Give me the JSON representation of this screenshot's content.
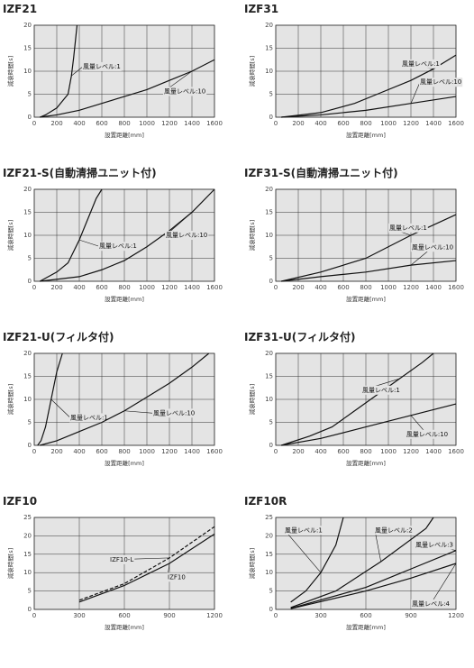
{
  "chart_data": [
    {
      "type": "line",
      "title": "IZF21",
      "x_label": "設置距離[mm]",
      "y_label": "減衰時間[s]",
      "xlim": [
        0,
        1600
      ],
      "xticks": [
        0,
        200,
        400,
        600,
        800,
        1000,
        1200,
        1400,
        1600
      ],
      "ylim": [
        0,
        20
      ],
      "yticks": [
        0,
        5,
        10,
        15,
        20
      ],
      "grid": true,
      "series": [
        {
          "name": "風量レベル:1",
          "color": "#111111",
          "linestyle": "solid",
          "x": [
            50,
            100,
            200,
            250,
            300,
            330,
            350,
            380
          ],
          "values": [
            0,
            0.5,
            2,
            3.5,
            5,
            9,
            13,
            20
          ]
        },
        {
          "name": "風量レベル:10",
          "color": "#111111",
          "linestyle": "solid",
          "x": [
            50,
            200,
            400,
            600,
            800,
            1000,
            1200,
            1400,
            1600
          ],
          "values": [
            0,
            0.5,
            1.5,
            3,
            4.5,
            6,
            8,
            10,
            12.5
          ]
        }
      ]
    },
    {
      "type": "line",
      "title": "IZF31",
      "x_label": "設置距離[mm]",
      "y_label": "減衰時間[s]",
      "xlim": [
        0,
        1600
      ],
      "xticks": [
        0,
        200,
        400,
        600,
        800,
        1000,
        1200,
        1400,
        1600
      ],
      "ylim": [
        0,
        20
      ],
      "yticks": [
        0,
        5,
        10,
        15,
        20
      ],
      "grid": true,
      "series": [
        {
          "name": "風量レベル:1",
          "color": "#111111",
          "linestyle": "solid",
          "x": [
            50,
            400,
            700,
            900,
            1200,
            1400,
            1600
          ],
          "values": [
            0,
            1,
            3,
            5,
            8,
            10.5,
            13.5
          ]
        },
        {
          "name": "風量レベル:10",
          "color": "#111111",
          "linestyle": "solid",
          "x": [
            50,
            400,
            800,
            1200,
            1600
          ],
          "values": [
            0,
            0.5,
            1.5,
            3,
            4.5
          ]
        }
      ]
    },
    {
      "type": "line",
      "title": "IZF21-S(自動清掃ユニット付)",
      "x_label": "設置距離[mm]",
      "y_label": "減衰時間[s]",
      "xlim": [
        0,
        1600
      ],
      "xticks": [
        0,
        200,
        400,
        600,
        800,
        1000,
        1200,
        1400,
        1600
      ],
      "ylim": [
        0,
        20
      ],
      "yticks": [
        0,
        5,
        10,
        15,
        20
      ],
      "grid": true,
      "series": [
        {
          "name": "風量レベル:1",
          "color": "#111111",
          "linestyle": "solid",
          "x": [
            50,
            200,
            300,
            400,
            500,
            550,
            600
          ],
          "values": [
            0,
            2,
            4,
            9,
            15,
            18,
            20
          ]
        },
        {
          "name": "風量レベル:10",
          "color": "#111111",
          "linestyle": "solid",
          "x": [
            50,
            400,
            600,
            800,
            1000,
            1200,
            1400,
            1600
          ],
          "values": [
            0,
            1,
            2.5,
            4.5,
            7.5,
            11,
            15,
            20
          ]
        }
      ]
    },
    {
      "type": "line",
      "title": "IZF31-S(自動清掃ユニット付)",
      "x_label": "設置距離[mm]",
      "y_label": "減衰時間[s]",
      "xlim": [
        0,
        1600
      ],
      "xticks": [
        0,
        200,
        400,
        600,
        800,
        1000,
        1200,
        1400,
        1600
      ],
      "ylim": [
        0,
        20
      ],
      "yticks": [
        0,
        5,
        10,
        15,
        20
      ],
      "grid": true,
      "series": [
        {
          "name": "風量レベル:1",
          "color": "#111111",
          "linestyle": "solid",
          "x": [
            50,
            400,
            800,
            1200,
            1600
          ],
          "values": [
            0,
            2,
            5,
            10,
            14.5
          ]
        },
        {
          "name": "風量レベル:10",
          "color": "#111111",
          "linestyle": "solid",
          "x": [
            50,
            400,
            800,
            1200,
            1600
          ],
          "values": [
            0,
            1,
            2,
            3.5,
            4.5
          ]
        }
      ]
    },
    {
      "type": "line",
      "title": "IZF21-U(フィルタ付)",
      "x_label": "設置距離[mm]",
      "y_label": "減衰時間[s]",
      "xlim": [
        0,
        1600
      ],
      "xticks": [
        0,
        200,
        400,
        600,
        800,
        1000,
        1200,
        1400,
        1600
      ],
      "ylim": [
        0,
        20
      ],
      "yticks": [
        0,
        5,
        10,
        15,
        20
      ],
      "grid": true,
      "series": [
        {
          "name": "風量レベル:1",
          "color": "#111111",
          "linestyle": "solid",
          "x": [
            30,
            60,
            100,
            150,
            200,
            250
          ],
          "values": [
            0,
            1,
            4,
            10,
            16,
            20
          ]
        },
        {
          "name": "風量レベル:10",
          "color": "#111111",
          "linestyle": "solid",
          "x": [
            50,
            200,
            400,
            600,
            800,
            1000,
            1200,
            1400,
            1550
          ],
          "values": [
            0,
            1,
            3,
            5,
            7.5,
            10.5,
            13.5,
            17,
            20
          ]
        }
      ]
    },
    {
      "type": "line",
      "title": "IZF31-U(フィルタ付)",
      "x_label": "設置距離[mm]",
      "y_label": "減衰時間[s]",
      "xlim": [
        0,
        1600
      ],
      "xticks": [
        0,
        200,
        400,
        600,
        800,
        1000,
        1200,
        1400,
        1600
      ],
      "ylim": [
        0,
        20
      ],
      "yticks": [
        0,
        5,
        10,
        15,
        20
      ],
      "grid": true,
      "series": [
        {
          "name": "風量レベル:1",
          "color": "#111111",
          "linestyle": "solid",
          "x": [
            50,
            300,
            500,
            700,
            900,
            1100,
            1300,
            1400
          ],
          "values": [
            0,
            2,
            4,
            7.5,
            11,
            14.5,
            18,
            20
          ]
        },
        {
          "name": "風量レベル:10",
          "color": "#111111",
          "linestyle": "solid",
          "x": [
            50,
            400,
            800,
            1200,
            1600
          ],
          "values": [
            0,
            1.5,
            4,
            6.5,
            9
          ]
        }
      ]
    },
    {
      "type": "line",
      "title": "IZF10",
      "x_label": "設置距離[mm]",
      "y_label": "減衰時間[s]",
      "xlim": [
        0,
        1200
      ],
      "xticks": [
        0,
        300,
        600,
        900,
        1200
      ],
      "ylim": [
        0,
        25
      ],
      "yticks": [
        0,
        5,
        10,
        15,
        20,
        25
      ],
      "grid": true,
      "series": [
        {
          "name": "IZF10-L",
          "color": "#111111",
          "linestyle": "dashed",
          "x": [
            300,
            600,
            900,
            1200
          ],
          "values": [
            2.5,
            7,
            14,
            22.5
          ]
        },
        {
          "name": "IZF10",
          "color": "#111111",
          "linestyle": "solid",
          "x": [
            300,
            600,
            900,
            1200
          ],
          "values": [
            2,
            6.5,
            12.5,
            20.5
          ]
        }
      ]
    },
    {
      "type": "line",
      "title": "IZF10R",
      "x_label": "設置距離[mm]",
      "y_label": "減衰時間[s]",
      "xlim": [
        0,
        1200
      ],
      "xticks": [
        0,
        300,
        600,
        900,
        1200
      ],
      "ylim": [
        0,
        25
      ],
      "yticks": [
        0,
        5,
        10,
        15,
        20,
        25
      ],
      "grid": true,
      "series": [
        {
          "name": "風量レベル:1",
          "color": "#111111",
          "linestyle": "solid",
          "x": [
            100,
            200,
            300,
            400,
            450
          ],
          "values": [
            2,
            5,
            10,
            17.5,
            25
          ]
        },
        {
          "name": "風量レベル:2",
          "color": "#111111",
          "linestyle": "solid",
          "x": [
            100,
            400,
            700,
            1000,
            1050
          ],
          "values": [
            0.5,
            5,
            13,
            22,
            25
          ]
        },
        {
          "name": "風量レベル:3",
          "color": "#111111",
          "linestyle": "solid",
          "x": [
            100,
            600,
            900,
            1200
          ],
          "values": [
            0.3,
            6,
            11,
            16
          ]
        },
        {
          "name": "風量レベル:4",
          "color": "#111111",
          "linestyle": "solid",
          "x": [
            100,
            600,
            900,
            1200
          ],
          "values": [
            0.2,
            5,
            8.5,
            12.5
          ]
        }
      ]
    }
  ]
}
